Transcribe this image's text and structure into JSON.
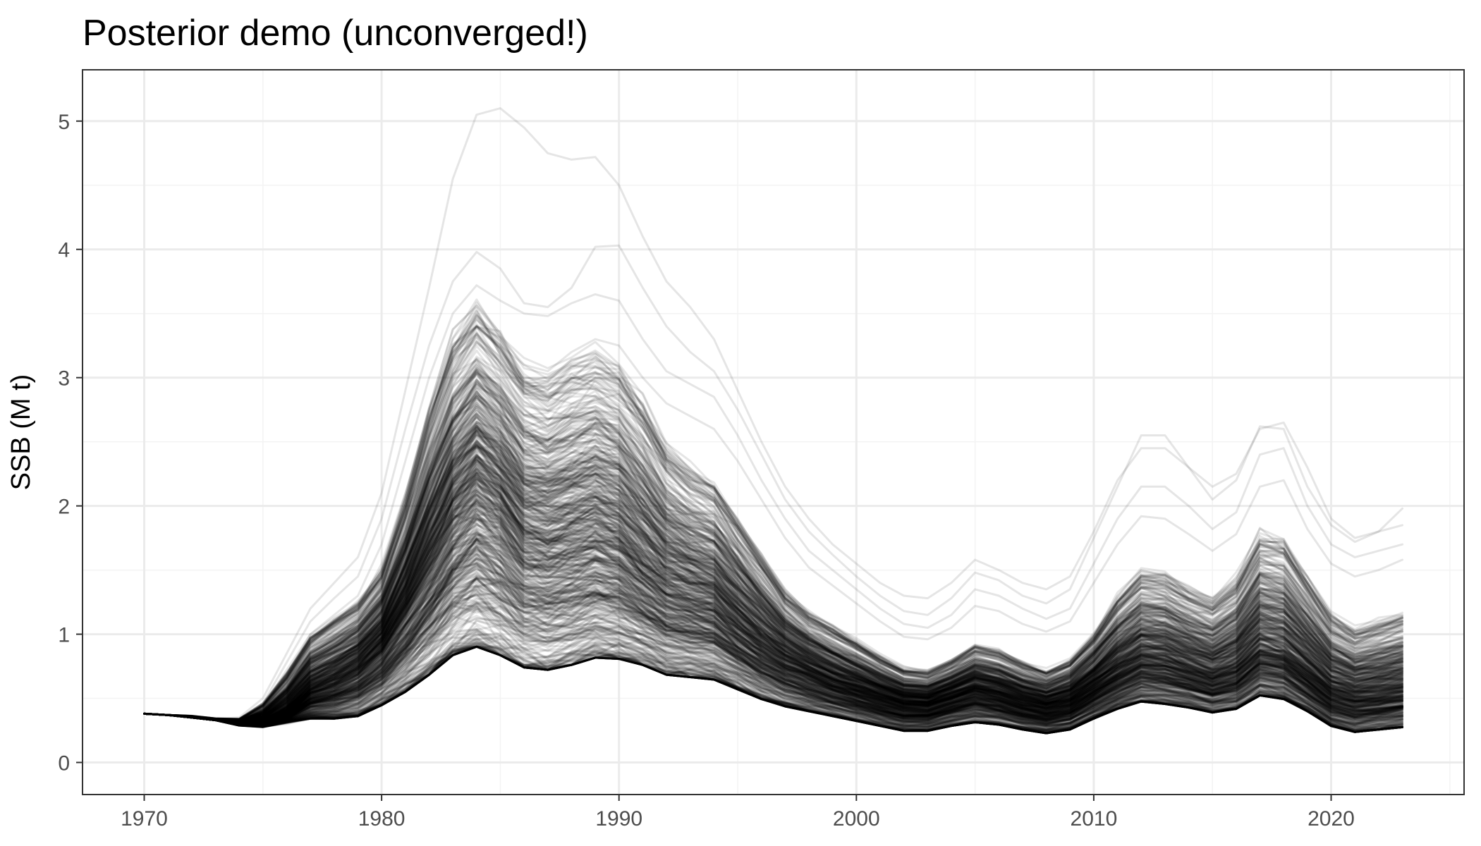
{
  "chart_data": {
    "type": "line",
    "title": "Posterior demo (unconverged!)",
    "xlabel": "",
    "ylabel": "SSB (M t)",
    "xlim": [
      1967.4,
      2025.6
    ],
    "ylim": [
      -0.25,
      5.4
    ],
    "x_ticks": [
      1970,
      1980,
      1990,
      2000,
      2010,
      2020
    ],
    "x_tick_labels": [
      "1970",
      "1980",
      "1990",
      "2000",
      "2010",
      "2020"
    ],
    "y_ticks": [
      0,
      1,
      2,
      3,
      4,
      5
    ],
    "y_tick_labels": [
      "0",
      "1",
      "2",
      "3",
      "4",
      "5"
    ],
    "x_minor_ticks": [
      1975,
      1985,
      1995,
      2005,
      2015,
      2025
    ],
    "y_minor_ticks": [
      0.5,
      1.5,
      2.5,
      3.5,
      4.5
    ],
    "grid": true,
    "legend": "none",
    "line_color": "#000000",
    "line_alpha": 0.1,
    "n_draws": 600,
    "x": [
      1970,
      1971,
      1972,
      1973,
      1974,
      1975,
      1976,
      1977,
      1978,
      1979,
      1980,
      1981,
      1982,
      1983,
      1984,
      1985,
      1986,
      1987,
      1988,
      1989,
      1990,
      1991,
      1992,
      1993,
      1994,
      1995,
      1996,
      1997,
      1998,
      1999,
      2000,
      2001,
      2002,
      2003,
      2004,
      2005,
      2006,
      2007,
      2008,
      2009,
      2010,
      2011,
      2012,
      2013,
      2014,
      2015,
      2016,
      2017,
      2018,
      2019,
      2020,
      2021,
      2022,
      2023
    ],
    "quantiles": {
      "q_low": [
        0.38,
        0.37,
        0.35,
        0.33,
        0.29,
        0.28,
        0.32,
        0.36,
        0.36,
        0.38,
        0.47,
        0.58,
        0.72,
        0.88,
        0.95,
        0.88,
        0.78,
        0.76,
        0.8,
        0.86,
        0.85,
        0.8,
        0.72,
        0.7,
        0.68,
        0.6,
        0.52,
        0.46,
        0.42,
        0.38,
        0.34,
        0.3,
        0.26,
        0.26,
        0.3,
        0.33,
        0.31,
        0.27,
        0.24,
        0.27,
        0.36,
        0.44,
        0.5,
        0.48,
        0.45,
        0.41,
        0.44,
        0.55,
        0.52,
        0.42,
        0.3,
        0.25,
        0.27,
        0.29
      ],
      "q_mid": [
        0.38,
        0.37,
        0.35,
        0.33,
        0.3,
        0.3,
        0.38,
        0.55,
        0.62,
        0.72,
        0.9,
        1.2,
        1.55,
        1.9,
        2.1,
        1.95,
        1.7,
        1.65,
        1.7,
        1.75,
        1.68,
        1.5,
        1.35,
        1.28,
        1.22,
        1.05,
        0.9,
        0.78,
        0.7,
        0.62,
        0.56,
        0.5,
        0.45,
        0.44,
        0.5,
        0.56,
        0.52,
        0.46,
        0.42,
        0.46,
        0.58,
        0.7,
        0.8,
        0.78,
        0.72,
        0.66,
        0.72,
        0.88,
        0.84,
        0.7,
        0.55,
        0.5,
        0.52,
        0.55
      ],
      "q_high": [
        0.38,
        0.37,
        0.36,
        0.34,
        0.33,
        0.42,
        0.62,
        0.88,
        1.0,
        1.12,
        1.35,
        1.85,
        2.45,
        2.95,
        3.2,
        3.0,
        2.75,
        2.7,
        2.8,
        2.85,
        2.75,
        2.5,
        2.2,
        2.05,
        1.95,
        1.7,
        1.45,
        1.2,
        1.05,
        0.95,
        0.85,
        0.75,
        0.66,
        0.64,
        0.72,
        0.82,
        0.78,
        0.7,
        0.64,
        0.72,
        0.9,
        1.15,
        1.32,
        1.3,
        1.2,
        1.12,
        1.25,
        1.55,
        1.5,
        1.25,
        1.0,
        0.9,
        0.95,
        1.0
      ]
    },
    "extreme_draws": [
      {
        "x_start": 1970,
        "values": [
          0.38,
          0.37,
          0.36,
          0.34,
          0.35,
          0.5,
          0.85,
          1.2,
          1.4,
          1.6,
          2.1,
          2.9,
          3.7,
          4.55,
          5.05,
          5.1,
          4.95,
          4.75,
          4.7,
          4.72,
          4.5,
          4.1,
          3.75,
          3.55,
          3.3,
          2.9,
          2.5,
          2.15,
          1.9,
          1.7,
          1.55,
          1.4,
          1.3,
          1.28,
          1.4,
          1.58,
          1.5,
          1.4,
          1.35,
          1.45,
          1.8,
          2.2,
          2.45,
          2.45,
          2.3,
          2.15,
          2.25,
          2.6,
          2.65,
          2.3,
          1.9,
          1.75,
          1.8,
          1.85
        ]
      },
      {
        "x_start": 1970,
        "values": [
          0.38,
          0.37,
          0.36,
          0.34,
          0.34,
          0.46,
          0.78,
          1.1,
          1.28,
          1.45,
          1.9,
          2.6,
          3.25,
          3.75,
          3.98,
          3.85,
          3.58,
          3.55,
          3.7,
          4.02,
          4.03,
          3.7,
          3.4,
          3.2,
          3.05,
          2.75,
          2.4,
          2.05,
          1.8,
          1.62,
          1.45,
          1.3,
          1.18,
          1.15,
          1.28,
          1.48,
          1.42,
          1.3,
          1.24,
          1.35,
          1.75,
          2.15,
          2.55,
          2.55,
          2.3,
          2.05,
          2.2,
          2.62,
          2.6,
          2.15,
          1.85,
          1.72,
          1.8,
          1.98
        ]
      },
      {
        "x_start": 1970,
        "values": [
          0.38,
          0.37,
          0.36,
          0.34,
          0.34,
          0.44,
          0.72,
          1.0,
          1.15,
          1.3,
          1.7,
          2.35,
          3.0,
          3.5,
          3.72,
          3.6,
          3.5,
          3.48,
          3.58,
          3.65,
          3.6,
          3.3,
          3.05,
          2.95,
          2.85,
          2.55,
          2.2,
          1.9,
          1.65,
          1.5,
          1.35,
          1.2,
          1.08,
          1.05,
          1.15,
          1.35,
          1.3,
          1.2,
          1.12,
          1.2,
          1.55,
          1.9,
          2.15,
          2.15,
          2.0,
          1.82,
          1.95,
          2.4,
          2.45,
          2.0,
          1.7,
          1.6,
          1.65,
          1.7
        ]
      },
      {
        "x_start": 1970,
        "values": [
          0.38,
          0.37,
          0.36,
          0.34,
          0.33,
          0.41,
          0.66,
          0.92,
          1.05,
          1.2,
          1.55,
          2.1,
          2.7,
          3.15,
          3.4,
          3.25,
          3.1,
          3.05,
          3.2,
          3.3,
          3.25,
          3.0,
          2.8,
          2.7,
          2.6,
          2.35,
          2.05,
          1.75,
          1.52,
          1.38,
          1.24,
          1.1,
          0.98,
          0.96,
          1.05,
          1.22,
          1.18,
          1.08,
          1.02,
          1.1,
          1.4,
          1.7,
          1.92,
          1.9,
          1.78,
          1.65,
          1.78,
          2.15,
          2.2,
          1.82,
          1.55,
          1.45,
          1.5,
          1.58
        ]
      },
      {
        "x_start": 1970,
        "values": [
          0.38,
          0.37,
          0.35,
          0.33,
          0.29,
          0.28,
          0.3,
          0.34,
          0.34,
          0.36,
          0.45,
          0.55,
          0.68,
          0.86,
          0.92,
          0.85,
          0.76,
          0.75,
          0.79,
          0.85,
          0.83,
          0.78,
          0.7,
          0.68,
          0.66,
          0.58,
          0.5,
          0.45,
          0.41,
          0.37,
          0.33,
          0.29,
          0.26,
          0.25,
          0.29,
          0.32,
          0.3,
          0.26,
          0.24,
          0.26,
          0.35,
          0.43,
          0.48,
          0.47,
          0.44,
          0.4,
          0.43,
          0.52,
          0.5,
          0.4,
          0.28,
          0.24,
          0.25,
          0.27
        ]
      }
    ]
  }
}
